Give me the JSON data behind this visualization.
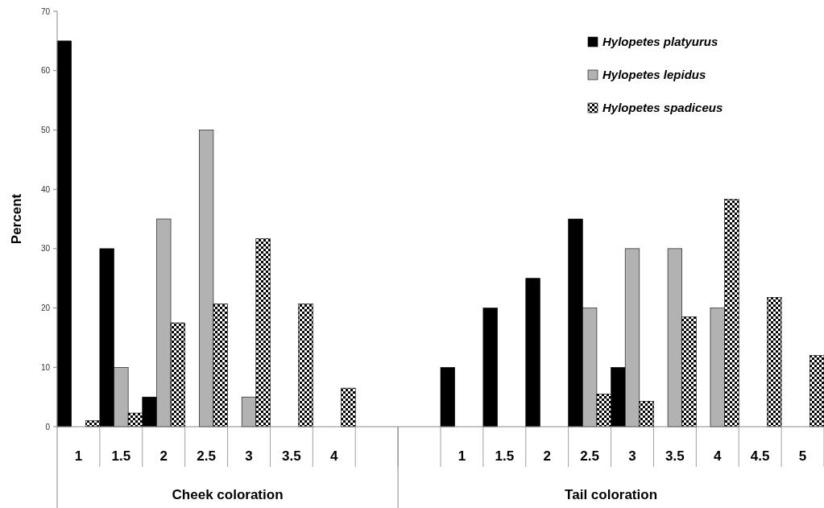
{
  "chart_data": {
    "type": "bar",
    "ylabel": "Percent",
    "categories": [
      "1",
      "1.5",
      "2",
      "2.5",
      "3",
      "3.5",
      "4",
      null,
      null,
      "1",
      "1.5",
      "2",
      "2.5",
      "3",
      "3.5",
      "4",
      "4.5",
      "5"
    ],
    "series": [
      {
        "name": "Hylopetes platyurus",
        "color": "#000000",
        "values": [
          65,
          30,
          5,
          null,
          null,
          null,
          null,
          null,
          null,
          10,
          20,
          25,
          35,
          10,
          null,
          null,
          null,
          null
        ]
      },
      {
        "name": "Hylopetes lepidus",
        "color": "#b2b2b2",
        "values": [
          null,
          10,
          35,
          50,
          5,
          null,
          null,
          null,
          null,
          null,
          null,
          null,
          20,
          30,
          30,
          20,
          null,
          null
        ]
      },
      {
        "name": "Hylopetes spadiceus",
        "color": "#000000",
        "values": [
          1,
          2.3,
          17.5,
          20.7,
          31.7,
          20.7,
          6.5,
          null,
          null,
          null,
          null,
          null,
          5.5,
          4.3,
          18.5,
          38.3,
          21.8,
          12
        ]
      }
    ],
    "ylim": [
      0,
      70
    ],
    "yticks": [
      0,
      10,
      20,
      30,
      40,
      50,
      60,
      70
    ],
    "legend": "top right",
    "annotations": [
      "Cheek coloration",
      "Tail coloration"
    ]
  }
}
